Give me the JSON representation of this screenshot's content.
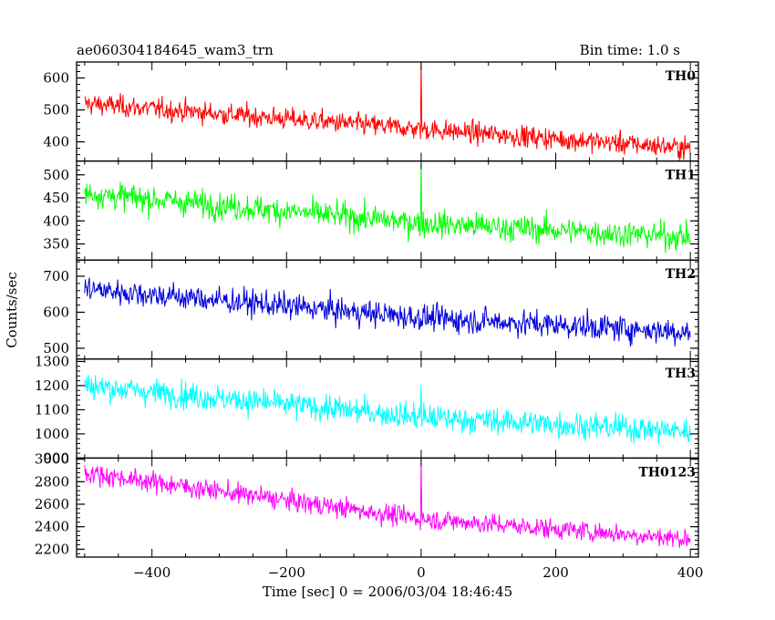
{
  "chart_data": {
    "type": "line",
    "title_left": "ae060304184645_wam3_trn",
    "title_right": "Bin time: 1.0 s",
    "xlabel": "Time [sec] 0 = 2006/03/04 18:46:45",
    "ylabel": "Counts/sec",
    "xlim": [
      -512,
      412
    ],
    "xticks": [
      -400,
      -200,
      0,
      200,
      400
    ],
    "bin_time_s": 1.0,
    "grid": false,
    "panels": [
      {
        "name": "TH0",
        "color": "#ff0000",
        "ylim": [
          340,
          650
        ],
        "yticks": [
          400,
          500,
          600
        ],
        "trend": [
          {
            "x": -500,
            "y": 520
          },
          {
            "x": 0,
            "y": 440
          },
          {
            "x": 400,
            "y": 380
          }
        ],
        "noise": 28,
        "spike": {
          "x": 0,
          "y": 650
        }
      },
      {
        "name": "TH1",
        "color": "#00ff00",
        "ylim": [
          315,
          530
        ],
        "yticks": [
          350,
          400,
          450,
          500
        ],
        "trend": [
          {
            "x": -500,
            "y": 460
          },
          {
            "x": 0,
            "y": 395
          },
          {
            "x": 400,
            "y": 365
          }
        ],
        "noise": 24,
        "spike": {
          "x": 0,
          "y": 525
        }
      },
      {
        "name": "TH2",
        "color": "#0000dd",
        "ylim": [
          470,
          745
        ],
        "yticks": [
          500,
          600,
          700
        ],
        "trend": [
          {
            "x": -500,
            "y": 665
          },
          {
            "x": 0,
            "y": 585
          },
          {
            "x": 400,
            "y": 545
          }
        ],
        "noise": 30,
        "spike": null
      },
      {
        "name": "TH3",
        "color": "#00ffff",
        "ylim": [
          900,
          1310
        ],
        "yticks": [
          900,
          1000,
          1100,
          1200,
          1300
        ],
        "trend": [
          {
            "x": -500,
            "y": 1200
          },
          {
            "x": 0,
            "y": 1070
          },
          {
            "x": 400,
            "y": 1010
          }
        ],
        "noise": 45,
        "spike": {
          "x": 0,
          "y": 1205
        }
      },
      {
        "name": "TH0123",
        "color": "#ff00ff",
        "ylim": [
          2130,
          3010
        ],
        "yticks": [
          2200,
          2400,
          2600,
          2800,
          3000
        ],
        "trend": [
          {
            "x": -500,
            "y": 2880
          },
          {
            "x": 0,
            "y": 2470
          },
          {
            "x": 400,
            "y": 2290
          }
        ],
        "noise": 75,
        "spike": {
          "x": 0,
          "y": 3000
        }
      }
    ]
  }
}
